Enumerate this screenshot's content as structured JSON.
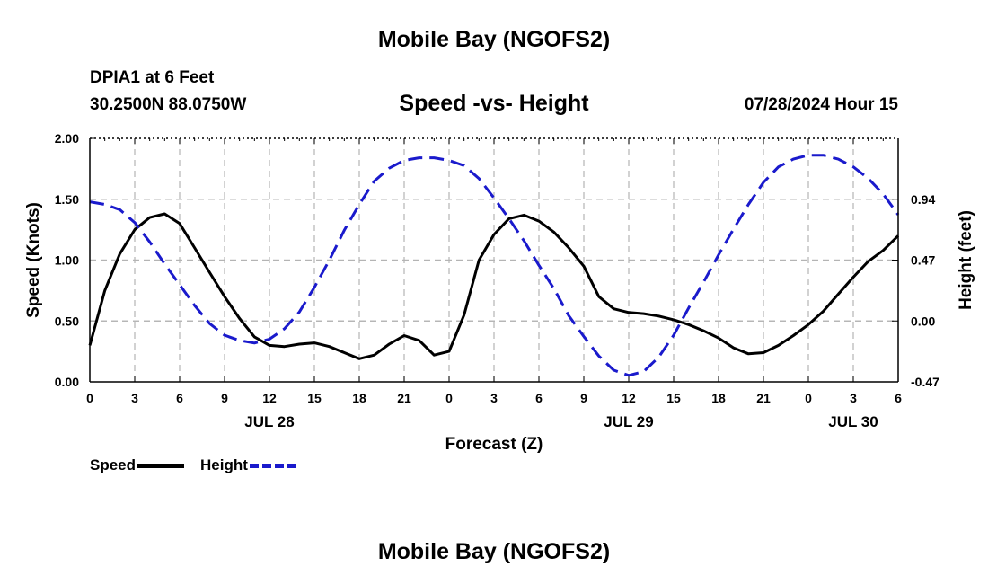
{
  "header": {
    "title": "Mobile Bay (NGOFS2)",
    "station": "DPIA1 at 6 Feet",
    "coords": "30.2500N  88.0750W",
    "timestamp": "07/28/2024 Hour 15"
  },
  "footer": {
    "title": "Mobile Bay (NGOFS2)"
  },
  "legend": {
    "speed_label": "Speed",
    "height_label": "Height"
  },
  "colors": {
    "speed": "#000000",
    "height": "#1a1acc",
    "grid": "#b4b4b4"
  },
  "chart_data": {
    "type": "line",
    "title": "Speed -vs- Height",
    "xlabel": "Forecast (Z)",
    "ylabel": "Speed (Knots)",
    "y2label": "Height (feet)",
    "x_range_hours": [
      0,
      54
    ],
    "x_tick_labels": [
      "0",
      "3",
      "6",
      "9",
      "12",
      "15",
      "18",
      "21",
      "0",
      "3",
      "6",
      "9",
      "12",
      "15",
      "18",
      "21",
      "0",
      "3",
      "6"
    ],
    "date_labels": [
      {
        "label": "JUL 28",
        "hour": 12
      },
      {
        "label": "JUL 29",
        "hour": 36
      },
      {
        "label": "JUL 30",
        "hour": 51
      }
    ],
    "ylim": [
      0,
      2
    ],
    "y_ticks": [
      "0.00",
      "0.50",
      "1.00",
      "1.50",
      "2.00"
    ],
    "y2lim": [
      -0.47,
      1.41
    ],
    "y2_ticks": [
      "-0.47",
      "0.00",
      "0.47",
      "0.94"
    ],
    "y2_tick_values": [
      -0.47,
      0,
      0.47,
      0.94
    ],
    "grid": true,
    "legend_position": "bottom-left",
    "series": [
      {
        "name": "Speed",
        "axis": "left",
        "style": "solid",
        "x": [
          0,
          1,
          2,
          3,
          4,
          5,
          6,
          7,
          8,
          9,
          10,
          11,
          12,
          13,
          14,
          15,
          16,
          17,
          18,
          19,
          20,
          21,
          22,
          23,
          24,
          25,
          26,
          27,
          28,
          29,
          30,
          31,
          32,
          33,
          34,
          35,
          36,
          37,
          38,
          39,
          40,
          41,
          42,
          43,
          44,
          45,
          46,
          47,
          48,
          49,
          50,
          51,
          52,
          53,
          54
        ],
        "y": [
          0.3,
          0.75,
          1.05,
          1.25,
          1.35,
          1.38,
          1.3,
          1.1,
          0.9,
          0.7,
          0.52,
          0.37,
          0.3,
          0.29,
          0.31,
          0.32,
          0.29,
          0.24,
          0.19,
          0.22,
          0.31,
          0.38,
          0.34,
          0.22,
          0.25,
          0.55,
          1.0,
          1.21,
          1.34,
          1.37,
          1.32,
          1.23,
          1.1,
          0.95,
          0.7,
          0.6,
          0.57,
          0.56,
          0.54,
          0.51,
          0.47,
          0.42,
          0.36,
          0.28,
          0.23,
          0.24,
          0.3,
          0.38,
          0.47,
          0.58,
          0.72,
          0.86,
          0.99,
          1.08,
          1.2
        ]
      },
      {
        "name": "Height",
        "axis": "right",
        "style": "dashed",
        "x": [
          0,
          1,
          2,
          3,
          4,
          5,
          6,
          7,
          8,
          9,
          10,
          11,
          12,
          13,
          14,
          15,
          16,
          17,
          18,
          19,
          20,
          21,
          22,
          23,
          24,
          25,
          26,
          27,
          28,
          29,
          30,
          31,
          32,
          33,
          34,
          35,
          36,
          37,
          38,
          39,
          40,
          41,
          42,
          43,
          44,
          45,
          46,
          47,
          48,
          49,
          50,
          51,
          52,
          53,
          54
        ],
        "y": [
          0.92,
          0.9,
          0.86,
          0.76,
          0.61,
          0.44,
          0.28,
          0.12,
          -0.02,
          -0.11,
          -0.15,
          -0.17,
          -0.14,
          -0.06,
          0.07,
          0.26,
          0.47,
          0.7,
          0.9,
          1.08,
          1.18,
          1.24,
          1.26,
          1.26,
          1.24,
          1.2,
          1.1,
          0.95,
          0.79,
          0.62,
          0.43,
          0.25,
          0.04,
          -0.12,
          -0.27,
          -0.38,
          -0.42,
          -0.39,
          -0.28,
          -0.11,
          0.1,
          0.3,
          0.51,
          0.71,
          0.9,
          1.07,
          1.19,
          1.25,
          1.28,
          1.28,
          1.25,
          1.19,
          1.1,
          0.98,
          0.82
        ]
      }
    ]
  }
}
